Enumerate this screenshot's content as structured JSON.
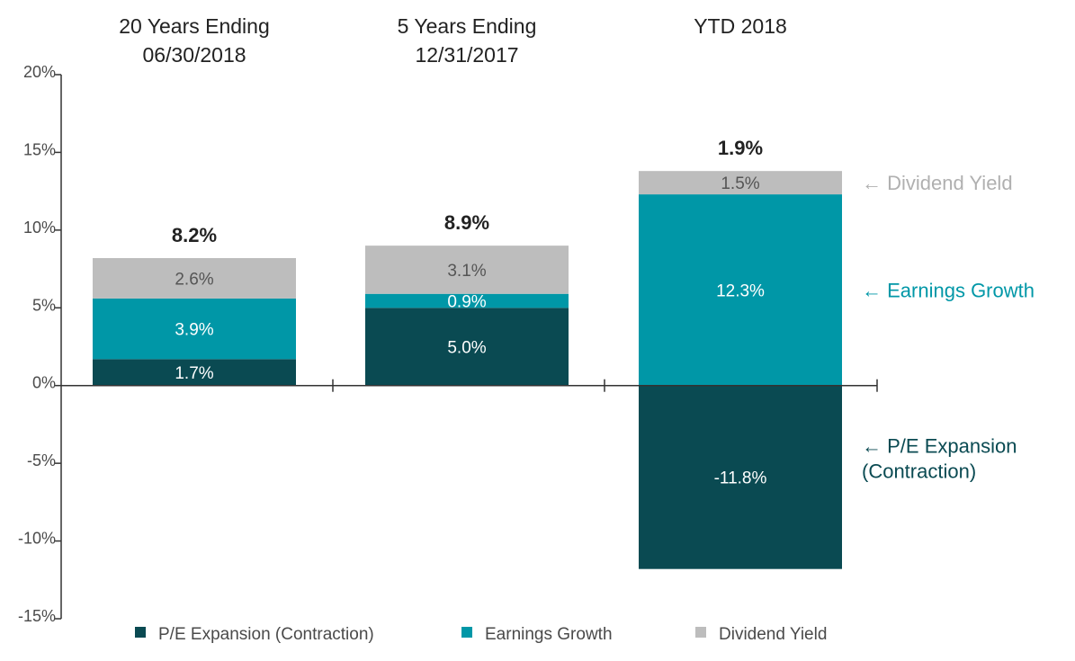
{
  "chart_data": {
    "type": "bar",
    "stacked": true,
    "categories": [
      "20 Years Ending 06/30/2018",
      "5 Years Ending 12/31/2017",
      "YTD 2018"
    ],
    "category_title_lines": [
      [
        "20 Years Ending",
        "06/30/2018"
      ],
      [
        "5 Years Ending",
        "12/31/2017"
      ],
      [
        "YTD 2018"
      ]
    ],
    "series": [
      {
        "name": "P/E Expansion (Contraction)",
        "values": [
          1.7,
          5.0,
          -11.8
        ],
        "labels": [
          "1.7%",
          "5.0%",
          "-11.8%"
        ],
        "color": "#0a4a52",
        "label_color": "#ffffff",
        "annotation": [
          "P/E Expansion",
          "(Contraction)"
        ],
        "annotation_color": "#0a4a52"
      },
      {
        "name": "Earnings Growth",
        "values": [
          3.9,
          0.9,
          12.3
        ],
        "labels": [
          "3.9%",
          "0.9%",
          "12.3%"
        ],
        "color": "#0097a7",
        "label_color": "#ffffff",
        "annotation": [
          "Earnings Growth"
        ],
        "annotation_color": "#0097a7"
      },
      {
        "name": "Dividend Yield",
        "values": [
          2.6,
          3.1,
          1.5
        ],
        "labels": [
          "2.6%",
          "3.1%",
          "1.5%"
        ],
        "color": "#bdbdbd",
        "label_color": "#555555",
        "annotation": [
          "Dividend Yield"
        ],
        "annotation_color": "#b0b0b0"
      }
    ],
    "totals": [
      8.2,
      8.9,
      1.9
    ],
    "total_labels": [
      "8.2%",
      "8.9%",
      "1.9%"
    ],
    "ylim": [
      -15,
      20
    ],
    "yticks": [
      20,
      15,
      10,
      5,
      0,
      -5,
      -10,
      -15
    ],
    "ytick_labels": [
      "20%",
      "15%",
      "10%",
      "5%",
      "0%",
      "-5%",
      "-10%",
      "-15%"
    ],
    "xlabel": "",
    "ylabel": "",
    "grid": false,
    "legend_position": "bottom",
    "annotation_arrow": "←"
  }
}
